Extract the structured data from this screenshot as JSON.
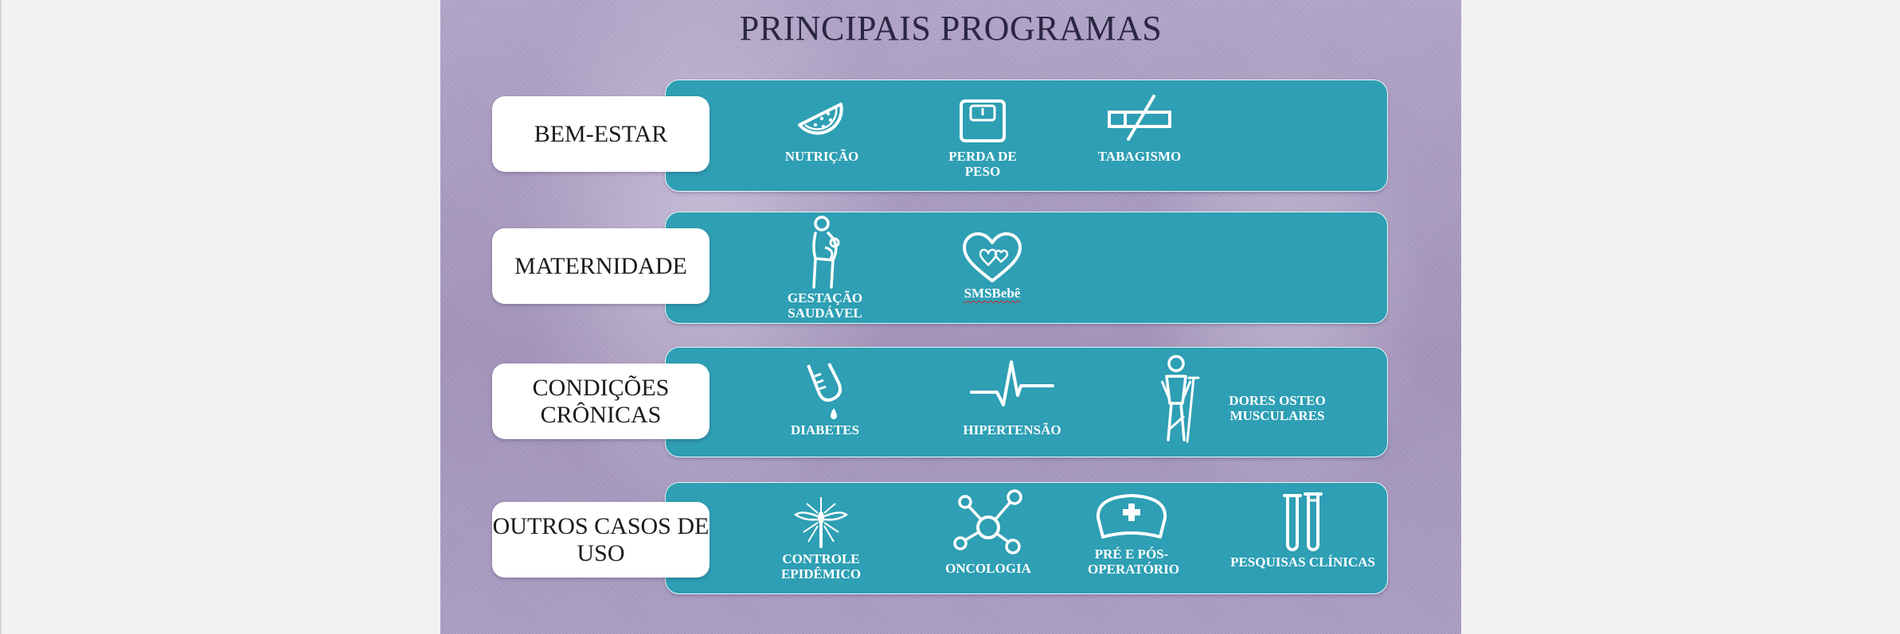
{
  "page": {
    "title": "PRINCIPAIS PROGRAMAS"
  },
  "categories": [
    {
      "label": "BEM-ESTAR",
      "items": [
        {
          "label": "NUTRIÇÃO",
          "icon": "watermelon-icon"
        },
        {
          "label": "PERDA DE PESO",
          "icon": "scale-icon"
        },
        {
          "label": "TABAGISMO",
          "icon": "no-smoking-icon"
        }
      ]
    },
    {
      "label": "MATERNIDADE",
      "items": [
        {
          "label": "GESTAÇÃO SAUDÁVEL",
          "icon": "pregnant-woman-icon"
        },
        {
          "label": "SMSBebê",
          "icon": "heart-icon"
        }
      ]
    },
    {
      "label": "CONDIÇÕES CRÔNICAS",
      "items": [
        {
          "label": "DIABETES",
          "icon": "glucose-meter-icon"
        },
        {
          "label": "HIPERTENSÃO",
          "icon": "heartbeat-icon"
        },
        {
          "label": "DORES OSTEO MUSCULARES",
          "icon": "crutch-person-icon"
        }
      ]
    },
    {
      "label": "OUTROS CASOS DE USO",
      "items": [
        {
          "label": "CONTROLE EPIDÊMICO",
          "icon": "mosquito-icon"
        },
        {
          "label": "ONCOLOGIA",
          "icon": "molecule-icon"
        },
        {
          "label": "PRÉ E PÓS-OPERATÓRIO",
          "icon": "nurse-cap-icon"
        },
        {
          "label": "PESQUISAS CLÍNICAS",
          "icon": "test-tubes-icon"
        }
      ]
    }
  ],
  "colors": {
    "panel": "#2e9fb4",
    "background": "#a99abf",
    "label_box": "#ffffff",
    "title": "#2a2744",
    "spellcheck_underline": "#d32a2a"
  }
}
